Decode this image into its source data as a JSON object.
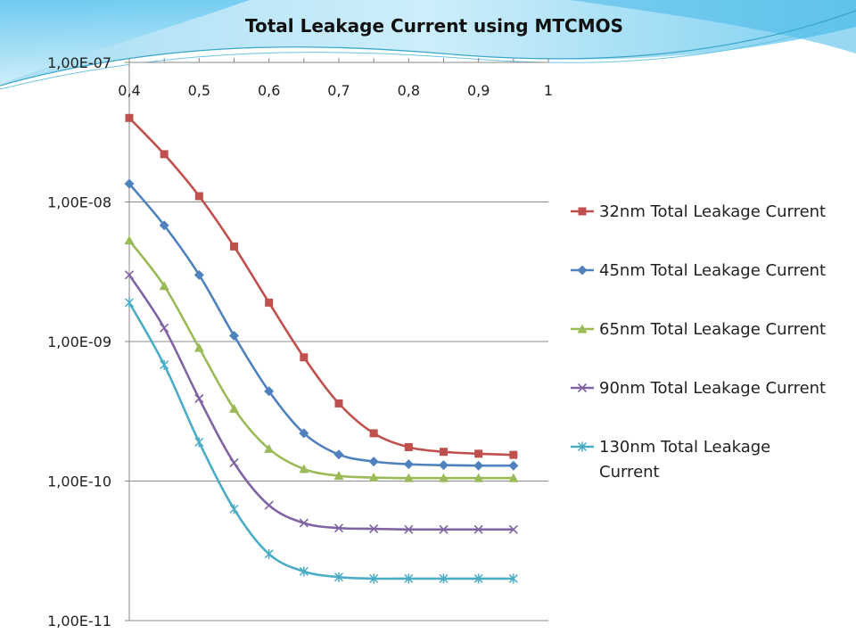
{
  "chart_data": {
    "type": "line",
    "title": "Total Leakage Current using MTCMOS",
    "xlabel": "",
    "ylabel": "",
    "x_ticks": [
      "0,4",
      "0,5",
      "0,6",
      "0,7",
      "0,8",
      "0,9",
      "1"
    ],
    "y_ticks": [
      "1,00E-07",
      "1,00E-08",
      "1,00E-09",
      "1,00E-10",
      "1,00E-11"
    ],
    "xlim": [
      0.4,
      1.0
    ],
    "ylim": [
      1e-11,
      1e-07
    ],
    "y_scale": "log",
    "grid": "horizontal",
    "legend_position": "right",
    "x": [
      0.4,
      0.45,
      0.5,
      0.55,
      0.6,
      0.65,
      0.7,
      0.75,
      0.8,
      0.85,
      0.9,
      0.95
    ],
    "series": [
      {
        "name": "32nm Total Leakage Current",
        "color": "#C0504D",
        "marker": "square",
        "values": [
          4e-08,
          2.2e-08,
          1.1e-08,
          4.8e-09,
          1.9e-09,
          7.7e-10,
          3.6e-10,
          2.2e-10,
          1.75e-10,
          1.62e-10,
          1.57e-10,
          1.54e-10
        ]
      },
      {
        "name": "45nm Total Leakage Current",
        "color": "#4F81BD",
        "marker": "diamond",
        "values": [
          1.35e-08,
          6.8e-09,
          3e-09,
          1.1e-09,
          4.4e-10,
          2.2e-10,
          1.55e-10,
          1.38e-10,
          1.32e-10,
          1.3e-10,
          1.29e-10,
          1.29e-10
        ]
      },
      {
        "name": "65nm Total Leakage Current",
        "color": "#9BBB59",
        "marker": "triangle",
        "values": [
          5.3e-09,
          2.5e-09,
          9e-10,
          3.3e-10,
          1.7e-10,
          1.22e-10,
          1.09e-10,
          1.06e-10,
          1.05e-10,
          1.05e-10,
          1.05e-10,
          1.05e-10
        ]
      },
      {
        "name": "90nm Total Leakage Current",
        "color": "#8064A2",
        "marker": "x",
        "values": [
          3e-09,
          1.25e-09,
          3.9e-10,
          1.35e-10,
          6.7e-11,
          5e-11,
          4.6e-11,
          4.55e-11,
          4.5e-11,
          4.5e-11,
          4.5e-11,
          4.5e-11
        ]
      },
      {
        "name": "130nm Total Leakage Current",
        "color": "#4BACC6",
        "marker": "star",
        "values": [
          1.9e-09,
          6.8e-10,
          1.9e-10,
          6.3e-11,
          3e-11,
          2.25e-11,
          2.05e-11,
          2e-11,
          2e-11,
          2e-11,
          2e-11,
          2e-11
        ]
      }
    ]
  }
}
